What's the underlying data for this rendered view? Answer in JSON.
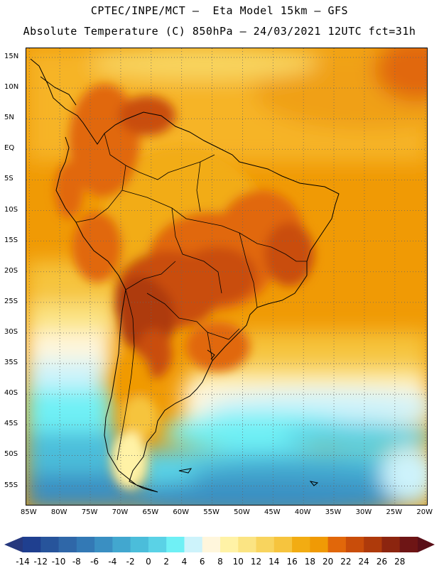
{
  "header": {
    "line1": "CPTEC/INPE/MCT —  Eta Model 15km — GFS",
    "line2": "Absolute Temperature (C) 850hPa — 24/03/2021 12UTC fct=31h"
  },
  "map": {
    "lat_labels": [
      "15N",
      "10N",
      "5N",
      "EQ",
      "5S",
      "10S",
      "15S",
      "20S",
      "25S",
      "30S",
      "35S",
      "40S",
      "45S",
      "50S",
      "55S"
    ],
    "lon_labels": [
      "85W",
      "80W",
      "75W",
      "70W",
      "65W",
      "60W",
      "55W",
      "50W",
      "45W",
      "40W",
      "35W",
      "30W",
      "25W",
      "20W"
    ],
    "lat_values": [
      15,
      10,
      5,
      0,
      -5,
      -10,
      -15,
      -20,
      -25,
      -30,
      -35,
      -40,
      -45,
      -50,
      -55
    ],
    "lon_values": [
      -85,
      -80,
      -75,
      -70,
      -65,
      -60,
      -55,
      -50,
      -45,
      -40,
      -35,
      -30,
      -25,
      -20
    ],
    "lat_range": [
      -58.3,
      16.5
    ],
    "lon_range": [
      -85.5,
      -19.5
    ],
    "grid": "dotted",
    "coastline_color": "#000000"
  },
  "colorbar": {
    "labels": [
      "-14",
      "-12",
      "-10",
      "-8",
      "-6",
      "-4",
      "-2",
      "0",
      "2",
      "4",
      "6",
      "8",
      "10",
      "12",
      "14",
      "16",
      "18",
      "20",
      "22",
      "24",
      "26",
      "28"
    ],
    "colors": [
      "#1f3f8f",
      "#27549b",
      "#2f67a8",
      "#3379b5",
      "#3a8fc2",
      "#42a7cf",
      "#4bbdda",
      "#5ad2e6",
      "#6ff0f5",
      "#cdf3fb",
      "#fff6dc",
      "#fff2a6",
      "#fbe483",
      "#f8d45e",
      "#f6c43e",
      "#f2ac12",
      "#f09a05",
      "#e1670a",
      "#c94d0a",
      "#ae3a0b",
      "#8c250f",
      "#6e1515"
    ],
    "below_color": "#26387e",
    "above_color": "#5a0f18"
  }
}
